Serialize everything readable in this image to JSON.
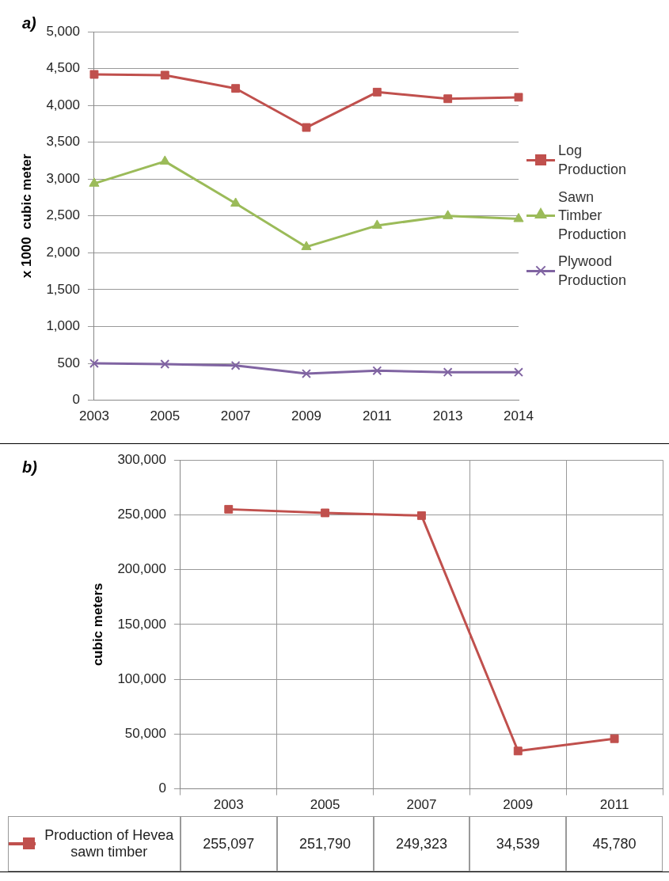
{
  "chart_data": [
    {
      "type": "line",
      "title": "a)",
      "ylabel": "x 1000  cubic meter",
      "categories": [
        "2003",
        "2005",
        "2007",
        "2009",
        "2011",
        "2013",
        "2014"
      ],
      "ylim": [
        0,
        5000
      ],
      "yticks": [
        {
          "value": 0,
          "label": "0"
        },
        {
          "value": 500,
          "label": "500"
        },
        {
          "value": 1000,
          "label": "1,000"
        },
        {
          "value": 1500,
          "label": "1,500"
        },
        {
          "value": 2000,
          "label": "2,000"
        },
        {
          "value": 2500,
          "label": "2,500"
        },
        {
          "value": 3000,
          "label": "3,000"
        },
        {
          "value": 3500,
          "label": "3,500"
        },
        {
          "value": 4000,
          "label": "4,000"
        },
        {
          "value": 4500,
          "label": "4,500"
        },
        {
          "value": 5000,
          "label": "5,000"
        }
      ],
      "grid": "y",
      "legend": "right",
      "series": [
        {
          "name": "Log Production",
          "color": "#c0504d",
          "marker": "square",
          "values": [
            4420,
            4410,
            4230,
            3700,
            4180,
            4090,
            4110
          ]
        },
        {
          "name": "Sawn Timber Production",
          "color": "#9bbb59",
          "marker": "triangle",
          "values": [
            2940,
            3240,
            2670,
            2080,
            2370,
            2500,
            2460
          ]
        },
        {
          "name": "Plywood Production",
          "color": "#8064a2",
          "marker": "cross",
          "values": [
            500,
            490,
            470,
            360,
            400,
            380,
            380
          ]
        }
      ]
    },
    {
      "type": "line",
      "title": "b)",
      "ylabel": "cubic meters",
      "categories": [
        "2003",
        "2005",
        "2007",
        "2009",
        "2011"
      ],
      "ylim": [
        0,
        300000
      ],
      "yticks": [
        {
          "value": 0,
          "label": "0"
        },
        {
          "value": 50000,
          "label": "50,000"
        },
        {
          "value": 100000,
          "label": "100,000"
        },
        {
          "value": 150000,
          "label": "150,000"
        },
        {
          "value": 200000,
          "label": "200,000"
        },
        {
          "value": 250000,
          "label": "250,000"
        },
        {
          "value": 300000,
          "label": "300,000"
        }
      ],
      "grid": true,
      "legend": "bottom",
      "data_labels": true,
      "series": [
        {
          "name": "Production of Hevea sawn timber",
          "color": "#c0504d",
          "marker": "square",
          "values": [
            255097,
            251790,
            249323,
            34539,
            45780
          ],
          "value_labels": [
            "255,097",
            "251,790",
            "249,323",
            "34,539",
            "45,780"
          ]
        }
      ]
    }
  ]
}
